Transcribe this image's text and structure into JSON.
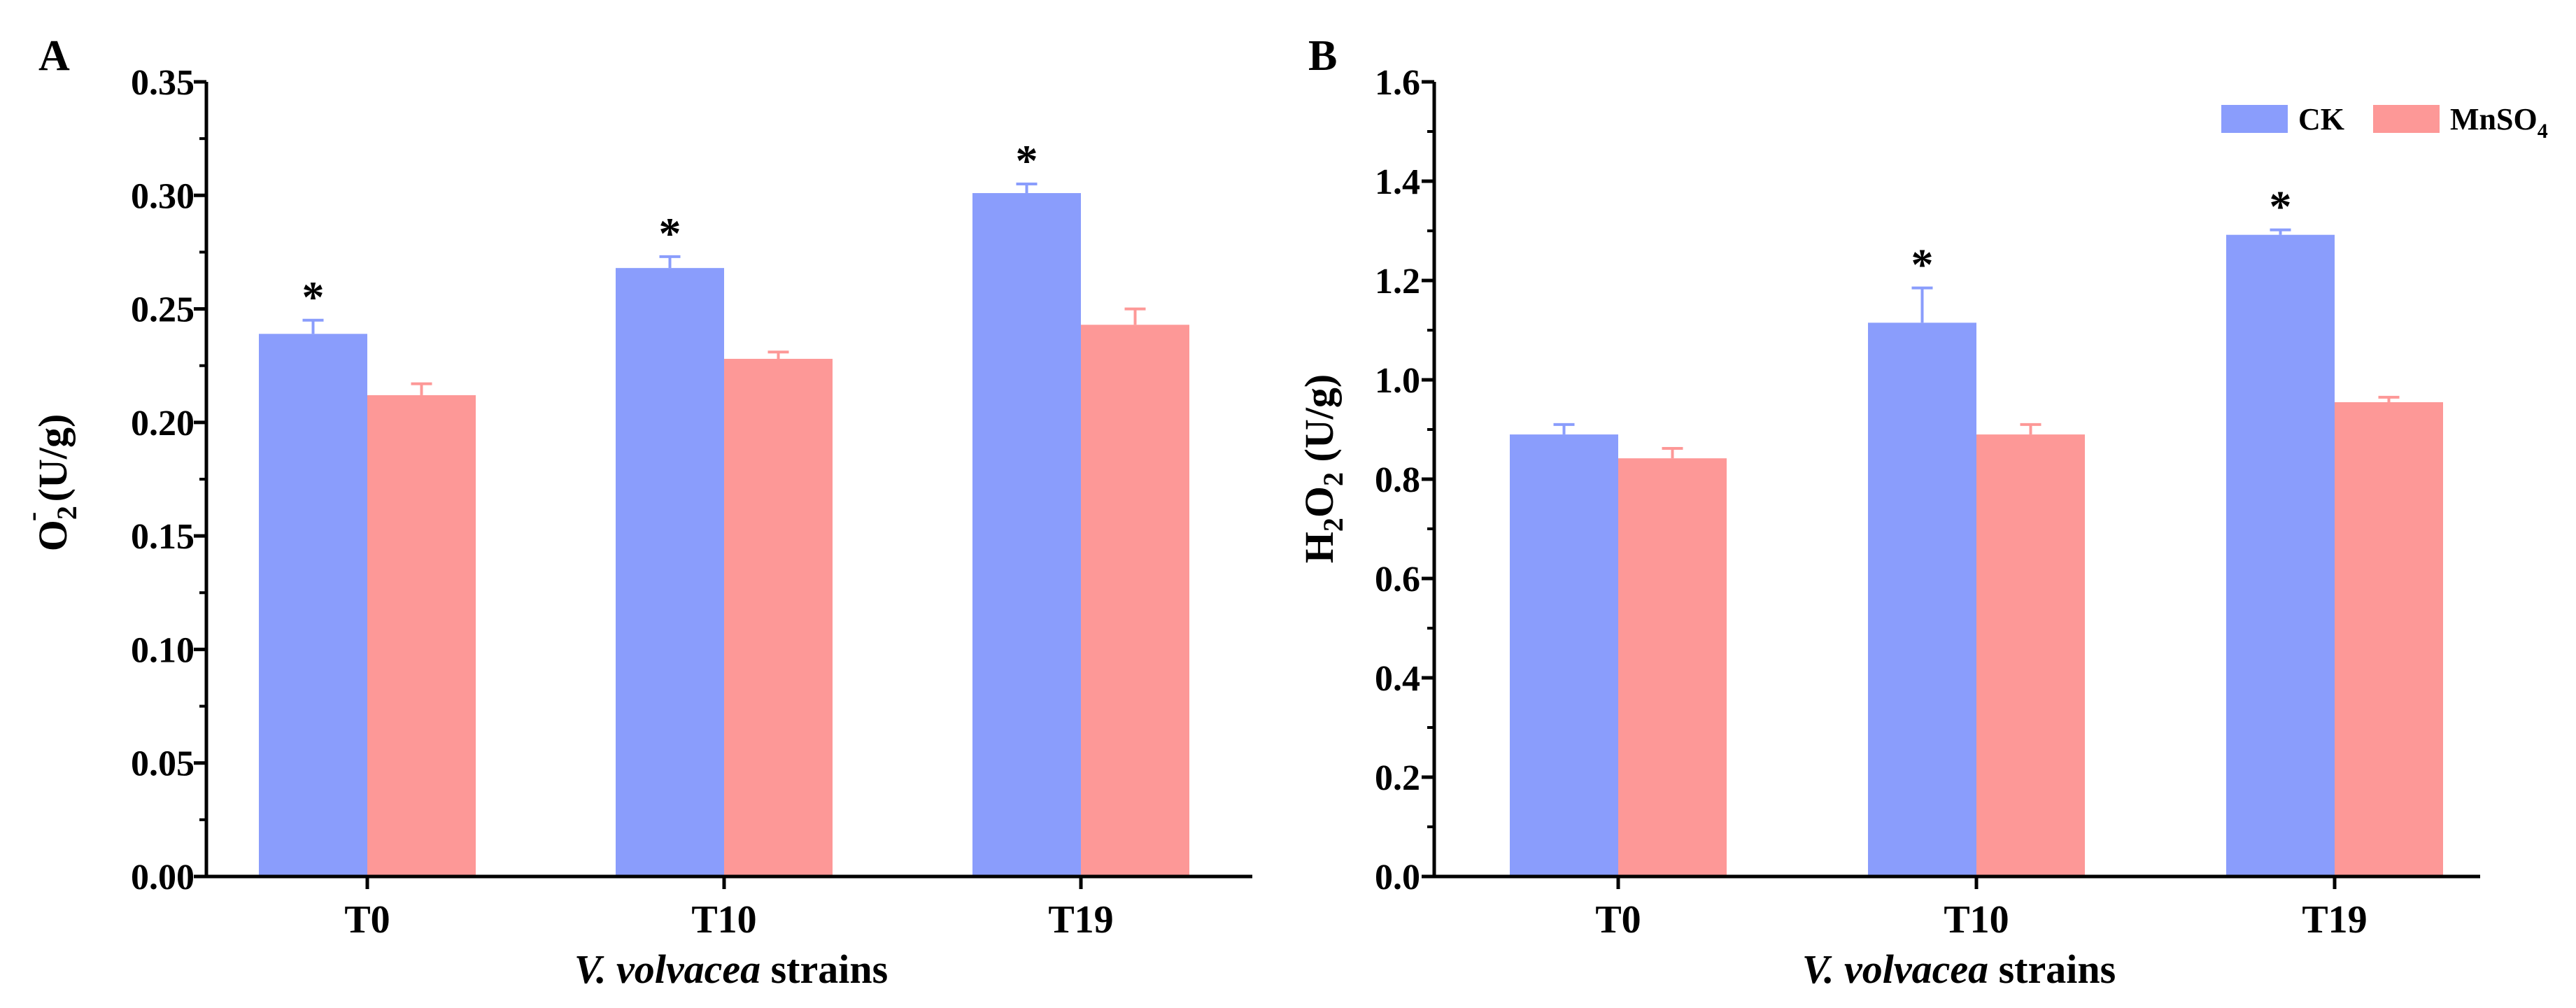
{
  "colors": {
    "ck": "#8a9dfc",
    "mnso4": "#fd9897",
    "axis": "#000000"
  },
  "chart_data": [
    {
      "panel_label": "A",
      "type": "bar",
      "categories": [
        "T0",
        "T10",
        "T19"
      ],
      "series": [
        {
          "name": "CK",
          "values": [
            0.239,
            0.268,
            0.301
          ],
          "errors": [
            0.006,
            0.005,
            0.004
          ]
        },
        {
          "name": "MnSO4",
          "values": [
            0.212,
            0.228,
            0.243
          ],
          "errors": [
            0.005,
            0.003,
            0.007
          ]
        }
      ],
      "significance": [
        "*",
        "*",
        "*"
      ],
      "ylabel": {
        "main": "O",
        "sub": "2",
        "sup": "-",
        "tail": " (U/g)"
      },
      "xlabel": {
        "italic": "V. volvacea",
        "plain": " strains"
      },
      "ylim": [
        0,
        0.35
      ],
      "yticks": [
        "0.00",
        "0.05",
        "0.10",
        "0.15",
        "0.20",
        "0.25",
        "0.30",
        "0.35"
      ],
      "legend": null
    },
    {
      "panel_label": "B",
      "type": "bar",
      "categories": [
        "T0",
        "T10",
        "T19"
      ],
      "series": [
        {
          "name": "CK",
          "values": [
            0.89,
            1.115,
            1.292
          ],
          "errors": [
            0.02,
            0.07,
            0.01
          ]
        },
        {
          "name": "MnSO4",
          "values": [
            0.842,
            0.89,
            0.955
          ],
          "errors": [
            0.02,
            0.02,
            0.01
          ]
        }
      ],
      "significance": [
        "",
        "*",
        "*"
      ],
      "ylabel": {
        "main": "H",
        "sub": "2",
        "main2": "O",
        "sub2": "2",
        "tail": " (U/g)"
      },
      "xlabel": {
        "italic": "V. volvacea",
        "plain": " strains"
      },
      "ylim": [
        0,
        1.6
      ],
      "yticks": [
        "0.0",
        "0.2",
        "0.4",
        "0.6",
        "0.8",
        "1.0",
        "1.2",
        "1.4",
        "1.6"
      ],
      "legend": {
        "position": "top-right",
        "entries": [
          {
            "label": "CK",
            "sub": ""
          },
          {
            "label": "MnSO",
            "sub": "4"
          }
        ]
      }
    }
  ]
}
